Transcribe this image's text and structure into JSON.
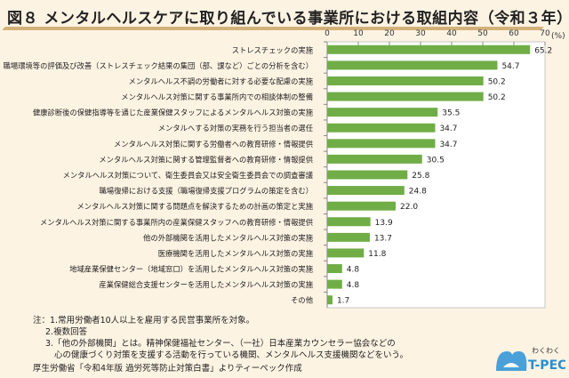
{
  "chart_data": {
    "type": "bar",
    "orientation": "horizontal",
    "title": "図８ メンタルヘルスケアに取り組んでいる事業所における取組内容（令和３年）",
    "unit": "(%)",
    "xlim": [
      0,
      70
    ],
    "ticks": [
      0,
      10,
      20,
      30,
      40,
      50,
      60,
      70
    ],
    "bar_color": "#70ad47",
    "grid": false,
    "plot_background": "#ffffff",
    "categories": [
      "ストレスチェックの実施",
      "職場環境等の評価及び改善（ストレスチェック結果の集団（部、課など）ごとの分析を含む）",
      "メンタルヘルス不調の労働者に対する必要な配慮の実施",
      "メンタルヘルス対策に関する事業所内での相談体制の整備",
      "健康診断後の保健指導等を通じた産業保健スタッフによるメンタルヘルス対策の実施",
      "メンタルへする対策の実務を行う担当者の選任",
      "メンタルヘルス対策に関する労働者への教育研修・情報提供",
      "メンタルヘルス対策に関する管理監督者への教育研修・情報提供",
      "メンタルヘルス対策について、衛生委員会又は安全衛生委員会での調査審議",
      "職場復帰における支援（職場復帰支援プログラムの策定を含む）",
      "メンタルヘルス対策に関する問題点を解決するための計画の策定と実施",
      "メンタルヘルス対策に関する事業所内の産業保健スタッフへの教育研修・情報提供",
      "他の外部機関を活用したメンタルヘルス対策の実施",
      "医療機関を活用したメンタルヘルス対策の実施",
      "地域産業保健センター（地域窓口）を活用したメンタルヘルス対策の実施",
      "産業保健総合支援センターを活用したメンタルヘルス対策の実施",
      "その他"
    ],
    "values": [
      65.2,
      54.7,
      50.2,
      50.2,
      35.5,
      34.7,
      34.7,
      30.5,
      25.8,
      24.8,
      22.0,
      13.9,
      13.7,
      11.8,
      4.8,
      4.8,
      1.7
    ]
  },
  "notes": [
    "注：1.常用労働者10人以上を雇用する民営事業所を対象。",
    "2.複数回答",
    "3.「他の外部機関」とは。精神保健福祉センター、（一社）日本産業カウンセラー協会などの",
    "心の健康づくり対策を支援する活動を行っている機関、メンタルヘルス支援機関などをいう。"
  ],
  "source": "厚生労働省「令和4年版 過労死等防止対策白書」よりティーペック作成",
  "logo": {
    "top": "わくわく",
    "main": "T-PEC",
    "sub": "WORK×WORK"
  }
}
